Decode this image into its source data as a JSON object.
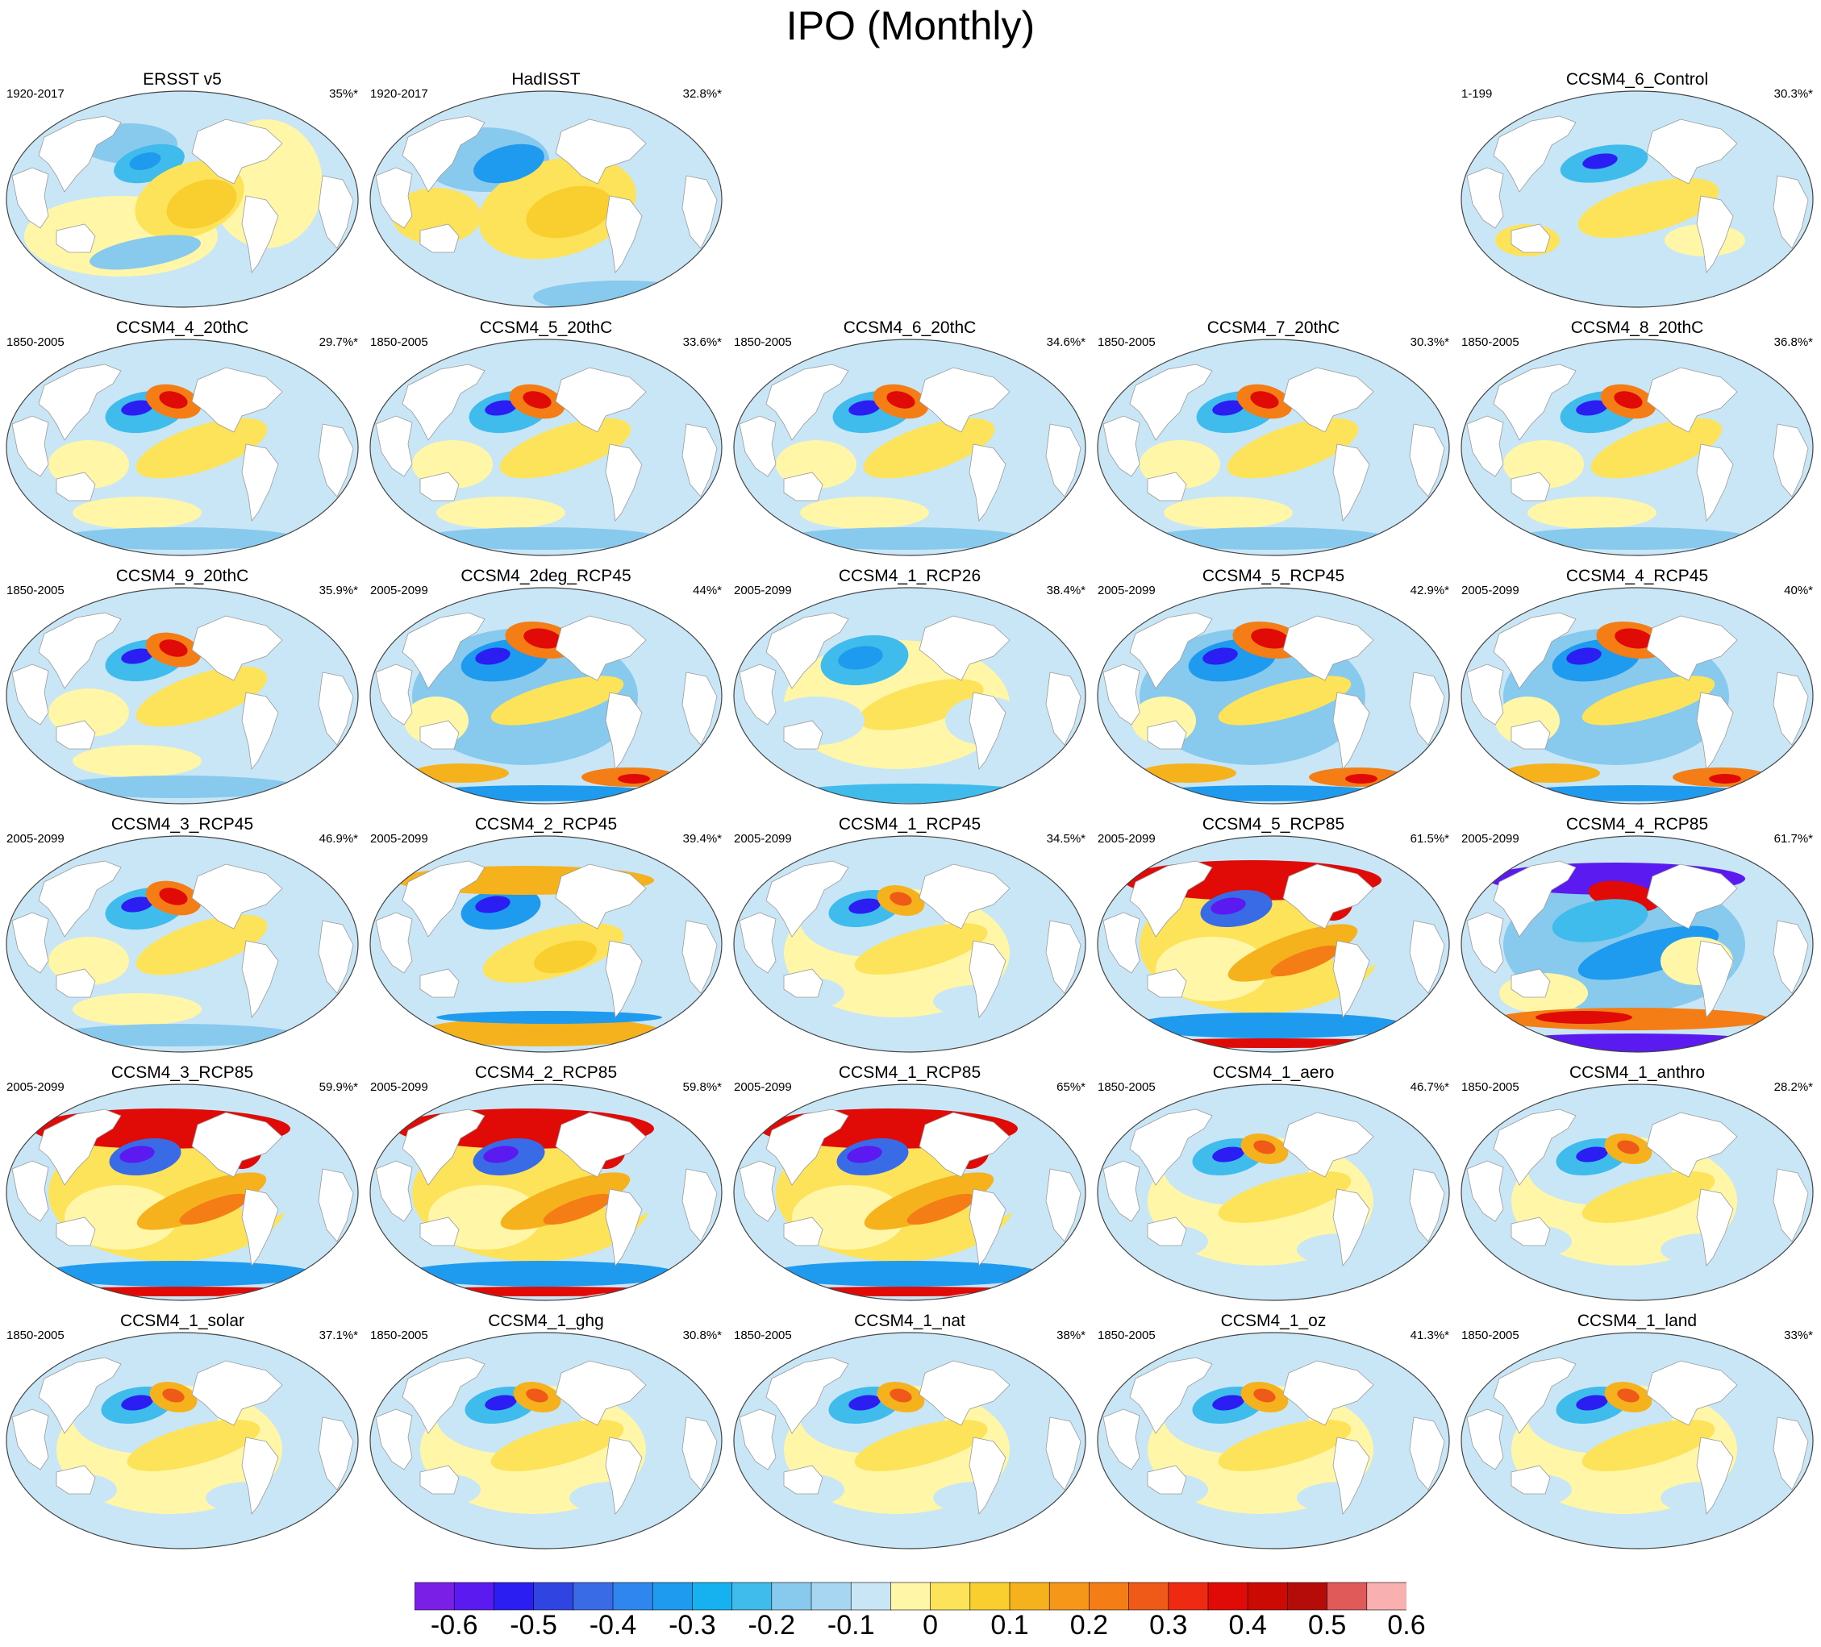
{
  "title": "IPO (Monthly)",
  "panels": [
    {
      "title": "ERSST v5",
      "years": "1920-2017",
      "pct": "35%*",
      "pattern": "obs1"
    },
    {
      "title": "HadISST",
      "years": "1920-2017",
      "pct": "32.8%*",
      "pattern": "obs2"
    },
    {
      "title": "CCSM4_6_Control",
      "years": "1-199",
      "pct": "30.3%*",
      "pattern": "control"
    },
    {
      "title": "CCSM4_4_20thC",
      "years": "1850-2005",
      "pct": "29.7%*",
      "pattern": "hist"
    },
    {
      "title": "CCSM4_5_20thC",
      "years": "1850-2005",
      "pct": "33.6%*",
      "pattern": "hist"
    },
    {
      "title": "CCSM4_6_20thC",
      "years": "1850-2005",
      "pct": "34.6%*",
      "pattern": "hist"
    },
    {
      "title": "CCSM4_7_20thC",
      "years": "1850-2005",
      "pct": "30.3%*",
      "pattern": "hist"
    },
    {
      "title": "CCSM4_8_20thC",
      "years": "1850-2005",
      "pct": "36.8%*",
      "pattern": "hist"
    },
    {
      "title": "CCSM4_9_20thC",
      "years": "1850-2005",
      "pct": "35.9%*",
      "pattern": "hist"
    },
    {
      "title": "CCSM4_2deg_RCP45",
      "years": "2005-2099",
      "pct": "44%*",
      "pattern": "rcp45"
    },
    {
      "title": "CCSM4_1_RCP26",
      "years": "2005-2099",
      "pct": "38.4%*",
      "pattern": "rcp26"
    },
    {
      "title": "CCSM4_5_RCP45",
      "years": "2005-2099",
      "pct": "42.9%*",
      "pattern": "rcp45"
    },
    {
      "title": "CCSM4_4_RCP45",
      "years": "2005-2099",
      "pct": "40%*",
      "pattern": "rcp45"
    },
    {
      "title": "CCSM4_3_RCP45",
      "years": "2005-2099",
      "pct": "46.9%*",
      "pattern": "hist"
    },
    {
      "title": "CCSM4_2_RCP45",
      "years": "2005-2099",
      "pct": "39.4%*",
      "pattern": "rcp45b"
    },
    {
      "title": "CCSM4_1_RCP45",
      "years": "2005-2099",
      "pct": "34.5%*",
      "pattern": "mild"
    },
    {
      "title": "CCSM4_5_RCP85",
      "years": "2005-2099",
      "pct": "61.5%*",
      "pattern": "rcp85"
    },
    {
      "title": "CCSM4_4_RCP85",
      "years": "2005-2099",
      "pct": "61.7%*",
      "pattern": "rcp85neg"
    },
    {
      "title": "CCSM4_3_RCP85",
      "years": "2005-2099",
      "pct": "59.9%*",
      "pattern": "rcp85"
    },
    {
      "title": "CCSM4_2_RCP85",
      "years": "2005-2099",
      "pct": "59.8%*",
      "pattern": "rcp85"
    },
    {
      "title": "CCSM4_1_RCP85",
      "years": "2005-2099",
      "pct": "65%*",
      "pattern": "rcp85"
    },
    {
      "title": "CCSM4_1_aero",
      "years": "1850-2005",
      "pct": "46.7%*",
      "pattern": "mild"
    },
    {
      "title": "CCSM4_1_anthro",
      "years": "1850-2005",
      "pct": "28.2%*",
      "pattern": "mild"
    },
    {
      "title": "CCSM4_1_solar",
      "years": "1850-2005",
      "pct": "37.1%*",
      "pattern": "mild"
    },
    {
      "title": "CCSM4_1_ghg",
      "years": "1850-2005",
      "pct": "30.8%*",
      "pattern": "mild"
    },
    {
      "title": "CCSM4_1_nat",
      "years": "1850-2005",
      "pct": "38%*",
      "pattern": "mild"
    },
    {
      "title": "CCSM4_1_oz",
      "years": "1850-2005",
      "pct": "41.3%*",
      "pattern": "mild"
    },
    {
      "title": "CCSM4_1_land",
      "years": "1850-2005",
      "pct": "33%*",
      "pattern": "mild"
    }
  ],
  "colorbar": {
    "colors": [
      "#7a1fe6",
      "#5a1af0",
      "#2a1ef2",
      "#2f44e0",
      "#3a6be6",
      "#2e86ee",
      "#1e9aee",
      "#16b2f0",
      "#3fbcec",
      "#88c9ee",
      "#a6d6f2",
      "#c8e6f6",
      "#fff6a8",
      "#fce35a",
      "#f8cf2e",
      "#f6b21c",
      "#f5981a",
      "#f47d16",
      "#ef5a18",
      "#ee2a12",
      "#e00a06",
      "#cc0a04",
      "#b50c0a",
      "#e05a5a",
      "#f8b0b0"
    ],
    "tick_labels": [
      "-0.6",
      "-0.5",
      "-0.4",
      "-0.3",
      "-0.2",
      "-0.1",
      "0",
      "0.1",
      "0.2",
      "0.3",
      "0.4",
      "0.5",
      "0.6"
    ]
  }
}
